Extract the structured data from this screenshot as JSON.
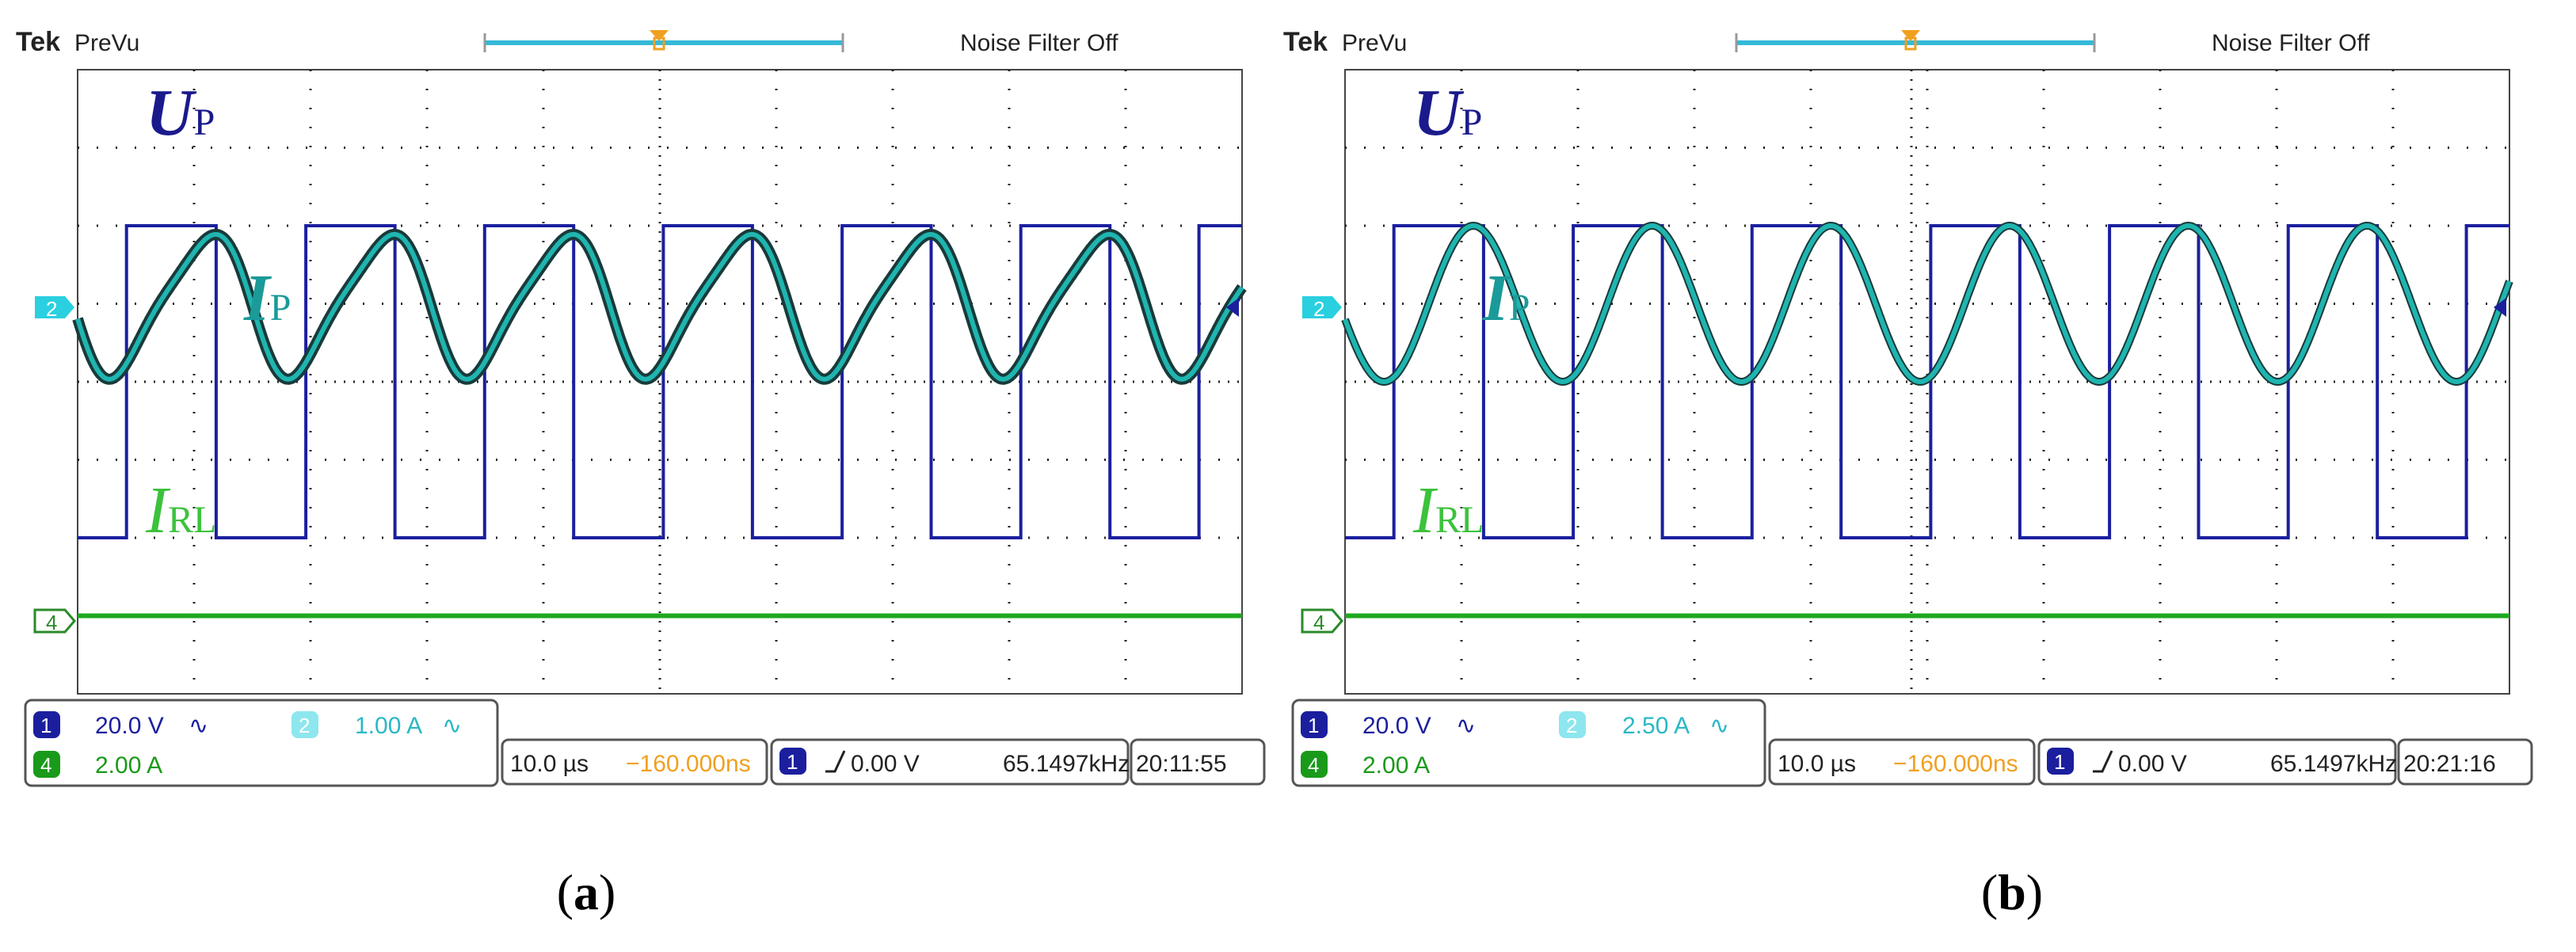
{
  "panels": [
    {
      "id": "a",
      "caption_letter": "a",
      "brand": "Tek",
      "mode": "PreVu",
      "noise_filter": "Noise Filter Off",
      "ch2_marker": "2",
      "ch4_marker": "4",
      "labels": {
        "up_main": "U",
        "up_sub": "P",
        "ip_main": "I",
        "ip_sub": "P",
        "irl_main": "I",
        "irl_sub": "RL"
      },
      "readouts": {
        "ch1_num": "1",
        "ch1_scale": "20.0 V",
        "ch1_coupling": "∿",
        "ch2_num": "2",
        "ch2_scale": "1.00 A",
        "ch2_coupling": "∿",
        "ch4_num": "4",
        "ch4_scale": "2.00 A",
        "timebase": "10.0 µs",
        "delay": "−160.000ns",
        "trig_ch": "1",
        "trig_level": "0.00 V",
        "freq": "65.1497kHz",
        "time": "20:11:55"
      },
      "colors": {
        "up": "#1b1f9e",
        "ip": "#1fb5b0",
        "irl": "#1fa81f",
        "label_up": "#1a1a8c",
        "label_ip": "#1a9a98",
        "label_irl": "#3cc23c",
        "accent": "#f0a020"
      }
    },
    {
      "id": "b",
      "caption_letter": "b",
      "brand": "Tek",
      "mode": "PreVu",
      "noise_filter": "Noise Filter Off",
      "ch2_marker": "2",
      "ch4_marker": "4",
      "labels": {
        "up_main": "U",
        "up_sub": "P",
        "ip_main": "I",
        "ip_sub": "P",
        "irl_main": "I",
        "irl_sub": "RL"
      },
      "readouts": {
        "ch1_num": "1",
        "ch1_scale": "20.0 V",
        "ch1_coupling": "∿",
        "ch2_num": "2",
        "ch2_scale": "2.50 A",
        "ch2_coupling": "∿",
        "ch4_num": "4",
        "ch4_scale": "2.00 A",
        "timebase": "10.0 µs",
        "delay": "−160.000ns",
        "trig_ch": "1",
        "trig_level": "0.00 V",
        "freq": "65.1497kHz",
        "time": "20:21:16"
      },
      "colors": {
        "up": "#1b1f9e",
        "ip": "#1fb5b0",
        "irl": "#1fa81f",
        "label_up": "#1a1a8c",
        "label_ip": "#1a9a98",
        "label_irl": "#3cc23c",
        "accent": "#f0a020"
      }
    }
  ],
  "chart_data": [
    {
      "type": "line",
      "title": "(a)",
      "x_unit": "divisions",
      "xlim": [
        0,
        10
      ],
      "ylim": [
        -4,
        4
      ],
      "grid": true,
      "series": [
        {
          "name": "UP",
          "shape": "square",
          "period_div": 1.535,
          "phase_div": 0.42,
          "duty": 0.5,
          "high_div": 2.0,
          "low_div": -2.0
        },
        {
          "name": "IP",
          "shape": "distorted-sine",
          "period_div": 1.535,
          "phase_div": 0.42,
          "center_div": 1.0,
          "amplitude_div": 1.0
        },
        {
          "name": "IRL",
          "shape": "flat",
          "level_div": -3.0
        }
      ]
    },
    {
      "type": "line",
      "title": "(b)",
      "x_unit": "divisions",
      "xlim": [
        0,
        10
      ],
      "ylim": [
        -4,
        4
      ],
      "grid": true,
      "series": [
        {
          "name": "UP",
          "shape": "square",
          "period_div": 1.535,
          "phase_div": 0.42,
          "duty": 0.5,
          "high_div": 2.0,
          "low_div": -2.0
        },
        {
          "name": "IP",
          "shape": "sine",
          "period_div": 1.535,
          "phase_div": 0.42,
          "center_div": 1.0,
          "amplitude_div": 1.0
        },
        {
          "name": "IRL",
          "shape": "flat",
          "level_div": -3.0
        }
      ]
    }
  ]
}
